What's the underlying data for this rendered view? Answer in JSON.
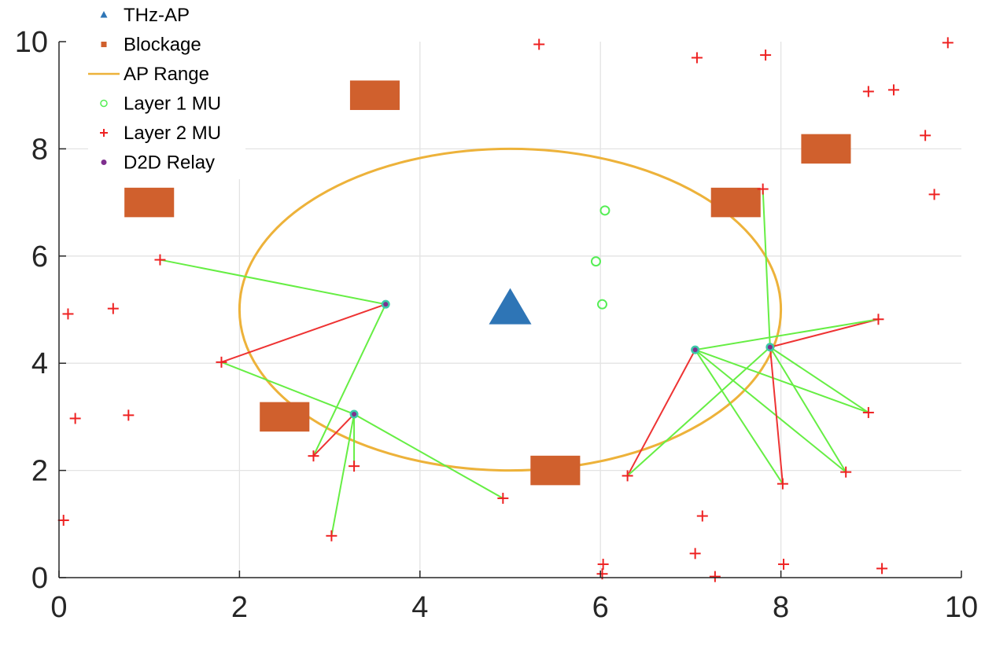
{
  "chart_data": {
    "type": "scatter",
    "title": "",
    "xlabel": "",
    "ylabel": "",
    "xlim": [
      0,
      10
    ],
    "ylim": [
      0,
      10
    ],
    "xticks": [
      "0",
      "2",
      "4",
      "6",
      "8",
      "10"
    ],
    "yticks": [
      "0",
      "2",
      "4",
      "6",
      "8",
      "10"
    ],
    "grid": true,
    "legend_position": "top-left",
    "legend": [
      {
        "label": "THz-AP",
        "marker": "triangle",
        "color": "#2E75B6"
      },
      {
        "label": "Blockage",
        "marker": "square",
        "color": "#D0602D"
      },
      {
        "label": "AP Range",
        "marker": "line",
        "color": "#EDB23A"
      },
      {
        "label": "Layer 1 MU",
        "marker": "circle-open",
        "color": "#55EE55"
      },
      {
        "label": "Layer 2 MU",
        "marker": "plus",
        "color": "#EE2222"
      },
      {
        "label": "D2D Relay",
        "marker": "dot",
        "color": "#7E2F8E"
      }
    ],
    "ap": {
      "x": 5.0,
      "y": 5.05
    },
    "ap_range": {
      "cx": 5.0,
      "cy": 5.0,
      "rx": 3.0,
      "ry": 3.0
    },
    "blockages": [
      {
        "x": 1.0,
        "y": 7.0,
        "w": 0.55,
        "h": 0.55
      },
      {
        "x": 3.5,
        "y": 9.0,
        "w": 0.55,
        "h": 0.55
      },
      {
        "x": 2.5,
        "y": 3.0,
        "w": 0.55,
        "h": 0.55
      },
      {
        "x": 5.5,
        "y": 2.0,
        "w": 0.55,
        "h": 0.55
      },
      {
        "x": 7.5,
        "y": 7.0,
        "w": 0.55,
        "h": 0.55
      },
      {
        "x": 8.5,
        "y": 8.0,
        "w": 0.55,
        "h": 0.55
      }
    ],
    "layer1_mu": [
      [
        6.05,
        6.85
      ],
      [
        5.95,
        5.9
      ],
      [
        6.02,
        5.1
      ]
    ],
    "relays": [
      [
        3.62,
        5.1
      ],
      [
        3.27,
        3.05
      ],
      [
        7.05,
        4.25
      ],
      [
        7.88,
        4.3
      ]
    ],
    "layer2_mu": [
      [
        5.32,
        9.95
      ],
      [
        7.07,
        9.7
      ],
      [
        7.83,
        9.75
      ],
      [
        9.85,
        9.98
      ],
      [
        8.97,
        9.07
      ],
      [
        9.25,
        9.1
      ],
      [
        9.6,
        8.25
      ],
      [
        9.7,
        7.15
      ],
      [
        7.8,
        7.25
      ],
      [
        1.12,
        5.93
      ],
      [
        0.1,
        4.92
      ],
      [
        0.6,
        5.02
      ],
      [
        1.8,
        4.02
      ],
      [
        0.18,
        2.97
      ],
      [
        0.77,
        3.03
      ],
      [
        2.82,
        2.27
      ],
      [
        3.27,
        2.08
      ],
      [
        3.02,
        0.78
      ],
      [
        4.92,
        1.48
      ],
      [
        0.05,
        1.07
      ],
      [
        6.3,
        1.9
      ],
      [
        9.08,
        4.82
      ],
      [
        8.97,
        3.08
      ],
      [
        8.72,
        1.97
      ],
      [
        8.02,
        1.75
      ],
      [
        7.13,
        1.15
      ],
      [
        7.05,
        0.45
      ],
      [
        7.27,
        0.02
      ],
      [
        8.03,
        0.25
      ],
      [
        9.12,
        0.17
      ],
      [
        6.03,
        0.25
      ],
      [
        6.02,
        0.07
      ]
    ],
    "links": [
      {
        "from": [
          1.12,
          5.93
        ],
        "to": [
          3.62,
          5.1
        ],
        "color": "green"
      },
      {
        "from": [
          1.8,
          4.02
        ],
        "to": [
          3.62,
          5.1
        ],
        "color": "red"
      },
      {
        "from": [
          2.82,
          2.27
        ],
        "to": [
          3.62,
          5.1
        ],
        "color": "green"
      },
      {
        "from": [
          1.8,
          4.02
        ],
        "to": [
          3.27,
          3.05
        ],
        "color": "green"
      },
      {
        "from": [
          2.82,
          2.27
        ],
        "to": [
          3.27,
          3.05
        ],
        "color": "red"
      },
      {
        "from": [
          3.27,
          2.08
        ],
        "to": [
          3.27,
          3.05
        ],
        "color": "green"
      },
      {
        "from": [
          3.02,
          0.78
        ],
        "to": [
          3.27,
          3.05
        ],
        "color": "green"
      },
      {
        "from": [
          4.92,
          1.48
        ],
        "to": [
          3.27,
          3.05
        ],
        "color": "green"
      },
      {
        "from": [
          7.8,
          7.25
        ],
        "to": [
          7.88,
          4.3
        ],
        "color": "green"
      },
      {
        "from": [
          9.08,
          4.82
        ],
        "to": [
          7.88,
          4.3
        ],
        "color": "red"
      },
      {
        "from": [
          9.08,
          4.82
        ],
        "to": [
          7.05,
          4.25
        ],
        "color": "green"
      },
      {
        "from": [
          8.97,
          3.08
        ],
        "to": [
          7.05,
          4.25
        ],
        "color": "green"
      },
      {
        "from": [
          8.72,
          1.97
        ],
        "to": [
          7.05,
          4.25
        ],
        "color": "green"
      },
      {
        "from": [
          8.02,
          1.75
        ],
        "to": [
          7.05,
          4.25
        ],
        "color": "green"
      },
      {
        "from": [
          6.3,
          1.9
        ],
        "to": [
          7.05,
          4.25
        ],
        "color": "red"
      },
      {
        "from": [
          6.3,
          1.9
        ],
        "to": [
          7.88,
          4.3
        ],
        "color": "green"
      },
      {
        "from": [
          8.97,
          3.08
        ],
        "to": [
          7.88,
          4.3
        ],
        "color": "green"
      },
      {
        "from": [
          8.72,
          1.97
        ],
        "to": [
          7.88,
          4.3
        ],
        "color": "green"
      },
      {
        "from": [
          8.02,
          1.75
        ],
        "to": [
          7.88,
          4.3
        ],
        "color": "red"
      }
    ]
  },
  "colors": {
    "grid": "#E3E3E3",
    "axis": "#262626",
    "link_green": "#66EE44",
    "link_red": "#EE3333",
    "relay_fill": "#3CC9A8"
  }
}
